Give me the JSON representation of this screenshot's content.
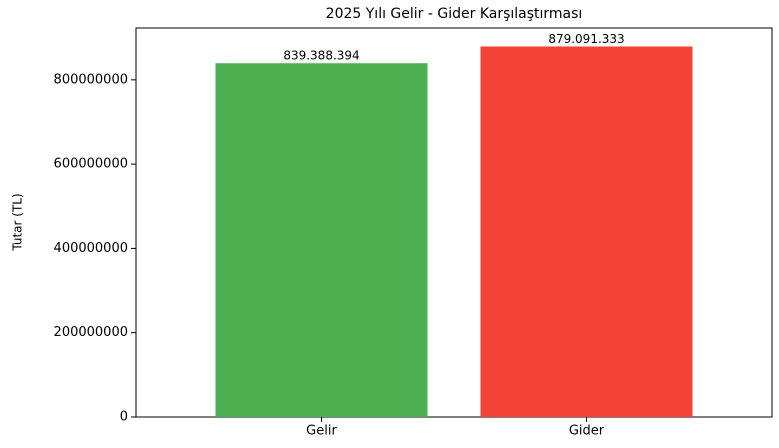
{
  "chart_data": {
    "type": "bar",
    "title": "2025 Yılı Gelir - Gider Karşılaştırması",
    "ylabel": "Tutar (TL)",
    "categories": [
      "Gelir",
      "Gider"
    ],
    "values": [
      839388394,
      879091333
    ],
    "value_labels": [
      "839.388.394",
      "879.091.333"
    ],
    "colors": [
      "#4caf50",
      "#f44336"
    ],
    "ylim": [
      0,
      923000000
    ],
    "yticks": [
      0,
      200000000,
      400000000,
      600000000,
      800000000
    ]
  }
}
